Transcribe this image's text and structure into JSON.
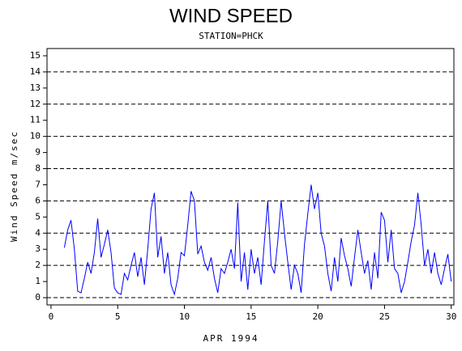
{
  "chart_data": {
    "type": "line",
    "title": "WIND SPEED",
    "subtitle": "STATION=PHCK",
    "xlabel": "APR 1994",
    "ylabel": "Wind Speed m/sec",
    "xlim": [
      -0.3,
      30.2
    ],
    "ylim": [
      -0.45,
      15.45
    ],
    "xticks": [
      0,
      5,
      10,
      15,
      20,
      25,
      30
    ],
    "yticks": [
      0,
      1,
      2,
      3,
      4,
      5,
      6,
      7,
      8,
      9,
      10,
      11,
      12,
      13,
      14,
      15
    ],
    "ygrid": [
      0,
      2,
      4,
      6,
      8,
      10,
      12,
      14
    ],
    "x": [
      1.0,
      1.25,
      1.5,
      1.75,
      2.0,
      2.25,
      2.5,
      2.75,
      3.0,
      3.25,
      3.5,
      3.75,
      4.0,
      4.25,
      4.5,
      4.75,
      5.0,
      5.25,
      5.5,
      5.75,
      6.0,
      6.25,
      6.5,
      6.75,
      7.0,
      7.25,
      7.5,
      7.75,
      8.0,
      8.25,
      8.5,
      8.75,
      9.0,
      9.25,
      9.5,
      9.75,
      10.0,
      10.25,
      10.5,
      10.75,
      11.0,
      11.25,
      11.5,
      11.75,
      12.0,
      12.25,
      12.5,
      12.75,
      13.0,
      13.25,
      13.5,
      13.75,
      14.0,
      14.25,
      14.5,
      14.75,
      15.0,
      15.25,
      15.5,
      15.75,
      16.0,
      16.25,
      16.5,
      16.75,
      17.0,
      17.25,
      17.5,
      17.75,
      18.0,
      18.25,
      18.5,
      18.75,
      19.0,
      19.25,
      19.5,
      19.75,
      20.0,
      20.25,
      20.5,
      20.75,
      21.0,
      21.25,
      21.5,
      21.75,
      22.0,
      22.25,
      22.5,
      22.75,
      23.0,
      23.25,
      23.5,
      23.75,
      24.0,
      24.25,
      24.5,
      24.75,
      25.0,
      25.25,
      25.5,
      25.75,
      26.0,
      26.25,
      26.5,
      26.75,
      27.0,
      27.25,
      27.5,
      27.75,
      28.0,
      28.25,
      28.5,
      28.75,
      29.0,
      29.25,
      29.5,
      29.75,
      30.0
    ],
    "series": [
      {
        "name": "Wind Speed",
        "color": "#0000ff",
        "values": [
          3.1,
          4.2,
          4.8,
          3.0,
          0.4,
          0.3,
          1.2,
          2.2,
          1.5,
          2.8,
          4.9,
          2.5,
          3.3,
          4.2,
          2.8,
          0.6,
          0.3,
          0.2,
          1.5,
          1.1,
          2.0,
          2.8,
          1.3,
          2.5,
          0.8,
          3.0,
          5.5,
          6.5,
          2.5,
          3.8,
          1.5,
          2.8,
          0.8,
          0.2,
          1.2,
          2.8,
          2.6,
          4.5,
          6.6,
          6.0,
          2.7,
          3.2,
          2.2,
          1.7,
          2.5,
          1.2,
          0.3,
          1.8,
          1.5,
          2.2,
          3.0,
          1.8,
          5.9,
          1.0,
          2.8,
          0.5,
          3.0,
          1.5,
          2.5,
          0.8,
          3.5,
          6.0,
          2.0,
          1.5,
          3.5,
          6.0,
          4.0,
          2.2,
          0.5,
          2.0,
          1.5,
          0.3,
          3.3,
          5.2,
          7.0,
          5.5,
          6.5,
          4.0,
          3.2,
          1.5,
          0.4,
          2.5,
          1.0,
          3.7,
          2.6,
          1.8,
          0.7,
          2.5,
          4.2,
          2.8,
          1.5,
          2.3,
          0.5,
          2.8,
          1.2,
          5.3,
          4.8,
          2.2,
          4.2,
          1.8,
          1.5,
          0.3,
          1.0,
          2.2,
          3.5,
          4.5,
          6.5,
          4.5,
          2.0,
          3.0,
          1.5,
          2.8,
          1.5,
          0.8,
          1.8,
          2.7,
          1.0
        ]
      }
    ]
  }
}
